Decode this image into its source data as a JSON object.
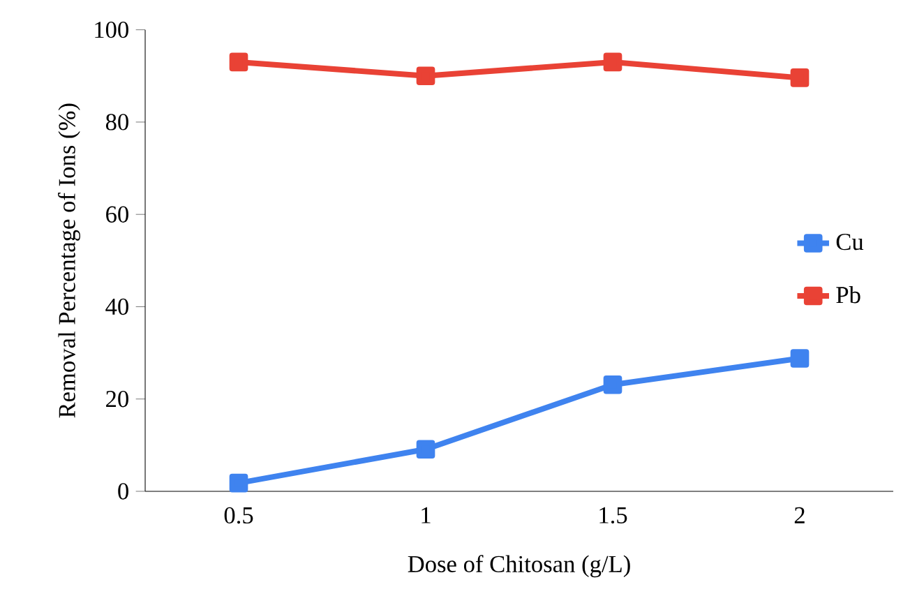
{
  "chart_data": {
    "type": "line",
    "xlabel": "Dose of Chitosan (g/L)",
    "ylabel": "Removal Percentage of Ions (%)",
    "categories": [
      "0.5",
      "1",
      "1.5",
      "2"
    ],
    "series": [
      {
        "name": "Cu",
        "color": "#3f83ef",
        "values": [
          1.8,
          9.1,
          23.1,
          28.8
        ]
      },
      {
        "name": "Pb",
        "color": "#e94235",
        "values": [
          93,
          90,
          93,
          89.6
        ]
      }
    ],
    "ylim": [
      0,
      100
    ],
    "yticks": [
      0,
      20,
      40,
      60,
      80,
      100
    ],
    "grid": false,
    "legend": "right",
    "marker": "square",
    "line_style": "solid"
  }
}
